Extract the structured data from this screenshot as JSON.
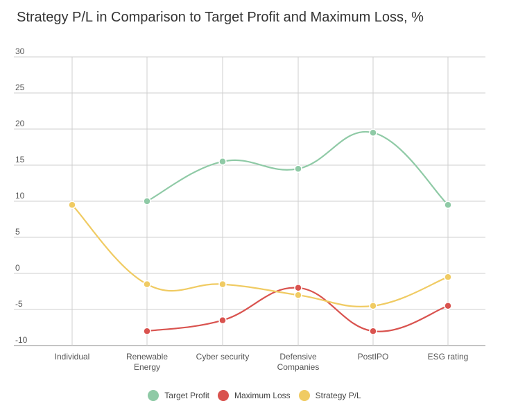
{
  "chart_data": {
    "type": "line",
    "title": "Strategy P/L in Comparison to Target Profit and Maximum Loss, %",
    "categories": [
      [
        "Individual"
      ],
      [
        "Renewable",
        "Energy"
      ],
      [
        "Cyber security"
      ],
      [
        "Defensive",
        "Companies"
      ],
      [
        "PostIPO"
      ],
      [
        "ESG rating"
      ]
    ],
    "ylim": [
      -10,
      30
    ],
    "yticks": [
      30,
      25,
      20,
      15,
      10,
      5,
      0,
      -5,
      -10
    ],
    "grid": true,
    "legend_position": "bottom",
    "series": [
      {
        "name": "Target Profit",
        "color": "#8fcaa6",
        "values": [
          null,
          10,
          15.5,
          14.5,
          19.5,
          9.5
        ]
      },
      {
        "name": "Maximum Loss",
        "color": "#d9534f",
        "values": [
          null,
          -8,
          -6.5,
          -2,
          -8,
          -4.5
        ]
      },
      {
        "name": "Strategy P/L",
        "color": "#f0cb63",
        "values": [
          9.5,
          -1.5,
          -1.5,
          -3,
          -4.5,
          -0.5
        ]
      }
    ]
  }
}
